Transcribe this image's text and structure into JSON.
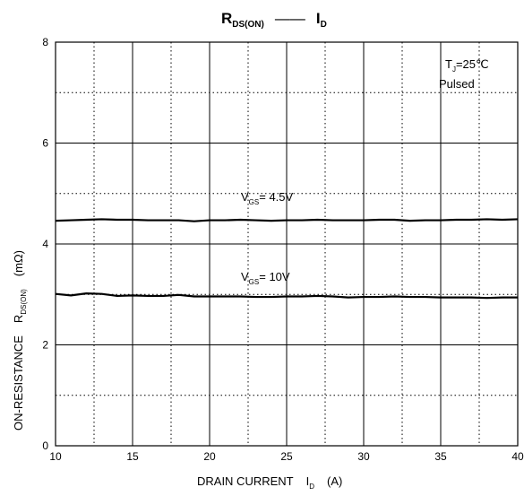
{
  "chart_data": {
    "type": "line",
    "title": {
      "main": "R",
      "main_sub": "DS(ON)",
      "dash": "——",
      "rhs": "I",
      "rhs_sub": "D"
    },
    "xlabel": {
      "text": "DRAIN CURRENT",
      "symbol": "I",
      "symbol_sub": "D",
      "unit": "(A)"
    },
    "ylabel": {
      "text": "ON-RESISTANCE",
      "symbol": "R",
      "symbol_sub": "DS(ON)",
      "unit": "(mΩ)"
    },
    "xlim": [
      10,
      40
    ],
    "ylim": [
      0,
      8
    ],
    "x_ticks": [
      "10",
      "15",
      "20",
      "25",
      "30",
      "35",
      "40"
    ],
    "y_ticks": [
      "0",
      "2",
      "4",
      "6",
      "8"
    ],
    "grid": {
      "major_solid": true,
      "minor_dotted": true
    },
    "annotation": {
      "line1_main": "T",
      "line1_sub": "J",
      "line1_rest": "=25℃",
      "line2": "Pulsed"
    },
    "series": [
      {
        "label_main": "V",
        "label_sub": "GS",
        "label_rest": "= 4.5V",
        "x": [
          10,
          11,
          12,
          13,
          14,
          15,
          16,
          17,
          18,
          19,
          20,
          21,
          22,
          23,
          24,
          25,
          26,
          27,
          28,
          29,
          30,
          31,
          32,
          33,
          34,
          35,
          36,
          37,
          38,
          39,
          40
        ],
        "y": [
          4.46,
          4.47,
          4.48,
          4.49,
          4.48,
          4.48,
          4.47,
          4.47,
          4.47,
          4.45,
          4.47,
          4.47,
          4.48,
          4.47,
          4.46,
          4.47,
          4.47,
          4.48,
          4.47,
          4.47,
          4.47,
          4.48,
          4.48,
          4.46,
          4.47,
          4.47,
          4.48,
          4.48,
          4.49,
          4.48,
          4.49
        ]
      },
      {
        "label_main": "V",
        "label_sub": "GS",
        "label_rest": "= 10V",
        "x": [
          10,
          11,
          12,
          13,
          14,
          15,
          16,
          17,
          18,
          19,
          20,
          21,
          22,
          23,
          24,
          25,
          26,
          27,
          28,
          29,
          30,
          31,
          32,
          33,
          34,
          35,
          36,
          37,
          38,
          39,
          40
        ],
        "y": [
          3.01,
          2.98,
          3.02,
          3.01,
          2.97,
          2.98,
          2.97,
          2.97,
          2.99,
          2.96,
          2.96,
          2.96,
          2.96,
          2.95,
          2.95,
          2.96,
          2.96,
          2.97,
          2.96,
          2.94,
          2.95,
          2.95,
          2.96,
          2.95,
          2.95,
          2.94,
          2.94,
          2.94,
          2.93,
          2.94,
          2.94
        ]
      }
    ]
  }
}
